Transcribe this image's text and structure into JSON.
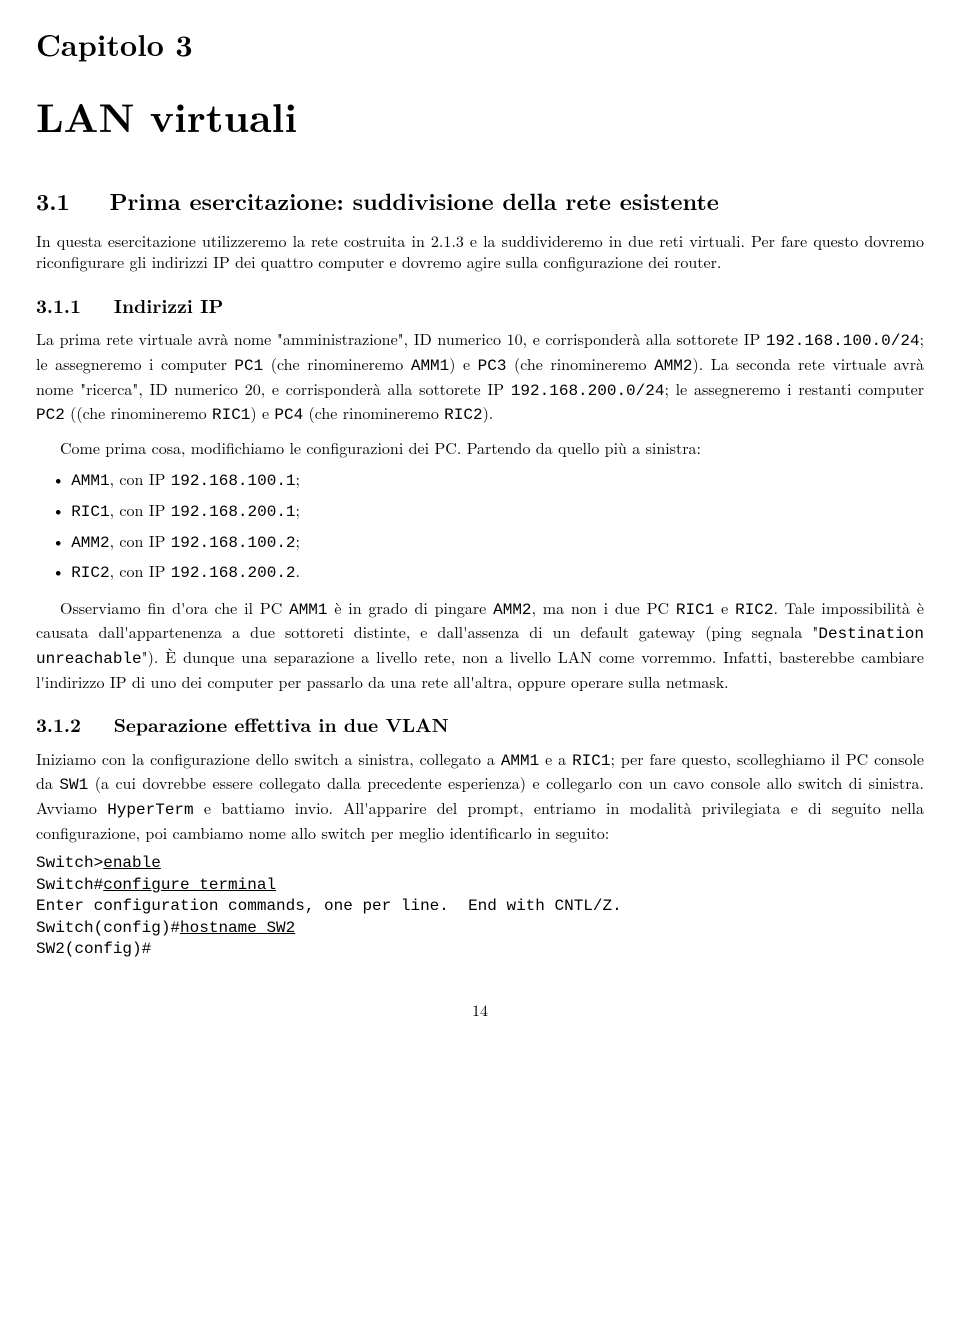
{
  "chapter": {
    "label": "Capitolo 3",
    "title": "LAN virtuali"
  },
  "section_3_1": {
    "number": "3.1",
    "title": "Prima esercitazione: suddivisione della rete esistente",
    "para": "In questa esercitazione utilizzeremo la rete costruita in 2.1.3 e la suddivideremo in due reti virtuali. Per fare questo dovremo riconfigurare gli indirizzi IP dei quattro computer e dovremo agire sulla configurazione dei router."
  },
  "section_3_1_1": {
    "number": "3.1.1",
    "title": "Indirizzi IP",
    "p1_pre": "La prima rete virtuale avrà nome \"amministrazione\", ID numerico 10, e corrisponderà alla sottorete IP ",
    "p1_code1": "192.168.100.0/24",
    "p1_mid1": "; le assegneremo i computer ",
    "p1_code2": "PC1",
    "p1_mid2": " (che rinomineremo ",
    "p1_code3": "AMM1",
    "p1_mid3": ") e ",
    "p1_code4": "PC3",
    "p1_mid4": " (che rinomineremo ",
    "p1_code5": "AMM2",
    "p1_mid5": "). La seconda rete virtuale avrà nome \"ricerca\", ID numerico 20, e corrisponderà alla sottorete IP ",
    "p1_code6": "192.168.200.0/24",
    "p1_mid6": "; le assegneremo i restanti computer ",
    "p1_code7": "PC2",
    "p1_mid7": " ((che rinomineremo ",
    "p1_code8": "RIC1",
    "p1_mid8": ") e ",
    "p1_code9": "PC4",
    "p1_mid9": " (che rinomineremo ",
    "p1_code10": "RIC2",
    "p1_tail": ").",
    "p2": "Come prima cosa, modifichiamo le configurazioni dei PC. Partendo da quello più a sinistra:",
    "bullets": [
      {
        "name": "AMM1",
        "mid": ", con IP ",
        "ip": "192.168.100.1",
        "tail": ";"
      },
      {
        "name": "RIC1",
        "mid": ", con IP ",
        "ip": "192.168.200.1",
        "tail": ";"
      },
      {
        "name": "AMM2",
        "mid": ", con IP ",
        "ip": "192.168.100.2",
        "tail": ";"
      },
      {
        "name": "RIC2",
        "mid": ", con IP ",
        "ip": "192.168.200.2",
        "tail": "."
      }
    ],
    "p3_pre": "Osserviamo fin d'ora che il PC ",
    "p3_c1": "AMM1",
    "p3_m1": " è in grado di pingare ",
    "p3_c2": "AMM2",
    "p3_m2": ", ma non i due PC ",
    "p3_c3": "RIC1",
    "p3_m3": " e ",
    "p3_c4": "RIC2",
    "p3_m4": ". Tale impossibilità è causata dall'appartenenza a due sottoreti distinte, e dall'assenza di un default gateway (ping segnala \"",
    "p3_c5": "Destination unreachable",
    "p3_m5": "\"). È dunque una separazione a livello rete, non a livello LAN come vorremmo. Infatti, basterebbe cambiare l'indirizzo IP di uno dei computer per passarlo da una rete all'altra, oppure operare sulla netmask."
  },
  "section_3_1_2": {
    "number": "3.1.2",
    "title": "Separazione effettiva in due VLAN",
    "p1_pre": "Iniziamo con la configurazione dello switch a sinistra, collegato a ",
    "p1_c1": "AMM1",
    "p1_m1": " e a ",
    "p1_c2": "RIC1",
    "p1_m2": "; per fare questo, scolleghiamo il PC console da ",
    "p1_c3": "SW1",
    "p1_m3": " (a cui dovrebbe essere collegato dalla precedente esperienza) e collegarlo con un cavo console allo switch di sinistra. Avviamo ",
    "p1_c4": "HyperTerm",
    "p1_m4": " e battiamo invio. All'apparire del prompt, entriamo in modalità privilegiata e di seguito nella configurazione, poi cambiamo nome allo switch per meglio identificarlo in seguito:",
    "code": {
      "l1_a": "Switch>",
      "l1_b": "enable",
      "l2_a": "Switch#",
      "l2_b": "configure terminal",
      "l3": "Enter configuration commands, one per line.  End with CNTL/Z.",
      "l4_a": "Switch(config)#",
      "l4_b": "hostname SW2",
      "l5": "SW2(config)#"
    }
  },
  "page_number": "14"
}
